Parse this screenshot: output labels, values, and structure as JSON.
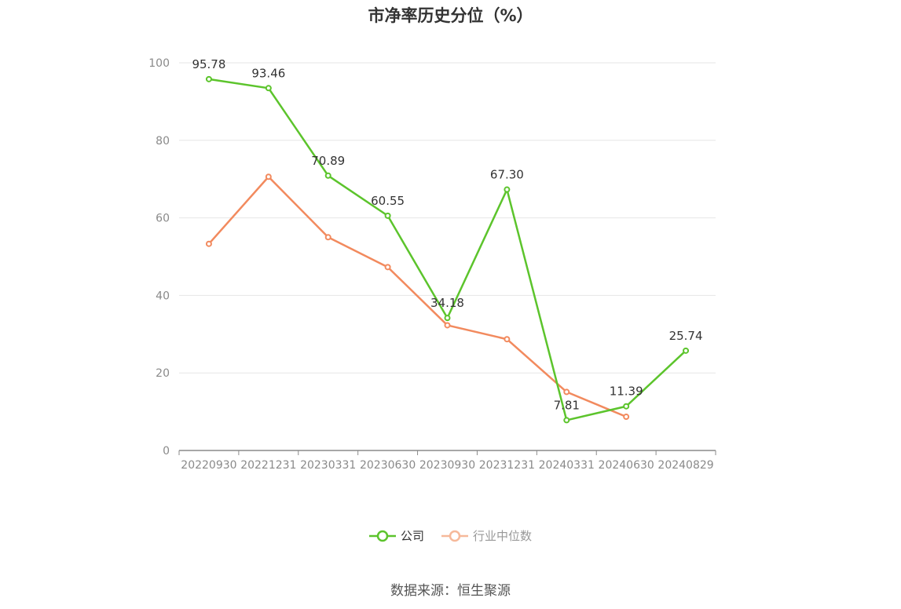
{
  "title": "市净率历史分位（%）",
  "source": "数据来源：恒生聚源",
  "colors": {
    "company": "#5cc42c",
    "industry": "#f28a5e",
    "industry_legend": "#f6b99a",
    "grid": "#e6e6e6",
    "axis": "#8a8a8a"
  },
  "legend": [
    {
      "name": "公司",
      "icon": "circle-line-icon"
    },
    {
      "name": "行业中位数",
      "icon": "circle-line-icon"
    }
  ],
  "chart_data": {
    "type": "line",
    "title": "市净率历史分位（%）",
    "categories": [
      "20220930",
      "20221231",
      "20230331",
      "20230630",
      "20230930",
      "20231231",
      "20240331",
      "20240630",
      "20240829"
    ],
    "ylim": [
      0,
      100
    ],
    "yticks": [
      0,
      20,
      40,
      60,
      80,
      100
    ],
    "grid": true,
    "legend_position": "bottom",
    "series": [
      {
        "name": "公司",
        "values": [
          95.78,
          93.46,
          70.89,
          60.55,
          34.18,
          67.3,
          7.81,
          11.39,
          25.74
        ],
        "labels": [
          "95.78",
          "93.46",
          "70.89",
          "60.55",
          "34.18",
          "67.30",
          "7.81",
          "11.39",
          "25.74"
        ]
      },
      {
        "name": "行业中位数",
        "values": [
          53.3,
          70.6,
          55.0,
          47.3,
          32.3,
          28.7,
          15.1,
          8.7,
          null
        ]
      }
    ]
  }
}
